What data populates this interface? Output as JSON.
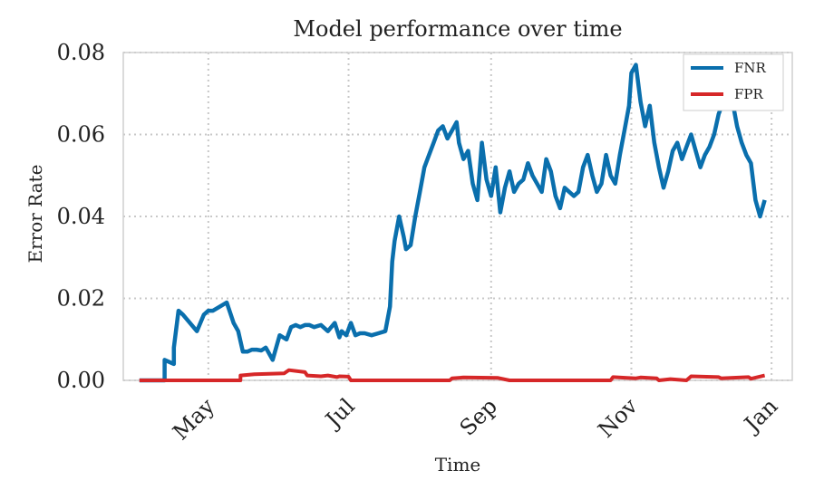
{
  "chart_data": {
    "type": "line",
    "title": "Model performance over time",
    "xlabel": "Time",
    "ylabel": "Error Rate",
    "xlim": [
      "2023-03-25",
      "2024-01-10"
    ],
    "ylim": [
      0,
      0.08
    ],
    "yticks": [
      0.0,
      0.02,
      0.04,
      0.06,
      0.08
    ],
    "ytick_labels": [
      "0.00",
      "0.02",
      "0.04",
      "0.06",
      "0.08"
    ],
    "xticks": [
      "2023-05-01",
      "2023-07-01",
      "2023-09-01",
      "2023-11-01",
      "2024-01-01"
    ],
    "xtick_labels": [
      "May",
      "Jul",
      "Sep",
      "Nov",
      "Jan"
    ],
    "grid": true,
    "legend_position": "top-right",
    "colors": {
      "FNR": "#0a6fad",
      "FPR": "#d62728",
      "grid": "#c8c8c8",
      "frame": "#cfcfcf"
    },
    "series": [
      {
        "name": "FNR",
        "x": [
          "2023-04-01",
          "2023-04-12",
          "2023-04-12",
          "2023-04-16",
          "2023-04-16",
          "2023-04-18",
          "2023-04-20",
          "2023-04-23",
          "2023-04-26",
          "2023-04-29",
          "2023-05-01",
          "2023-05-03",
          "2023-05-06",
          "2023-05-09",
          "2023-05-12",
          "2023-05-14",
          "2023-05-16",
          "2023-05-18",
          "2023-05-20",
          "2023-05-22",
          "2023-05-24",
          "2023-05-26",
          "2023-05-29",
          "2023-06-01",
          "2023-06-04",
          "2023-06-06",
          "2023-06-08",
          "2023-06-10",
          "2023-06-12",
          "2023-06-14",
          "2023-06-16",
          "2023-06-19",
          "2023-06-22",
          "2023-06-25",
          "2023-06-27",
          "2023-06-28",
          "2023-06-30",
          "2023-07-02",
          "2023-07-04",
          "2023-07-06",
          "2023-07-08",
          "2023-07-11",
          "2023-07-14",
          "2023-07-17",
          "2023-07-19",
          "2023-07-20",
          "2023-07-21",
          "2023-07-23",
          "2023-07-25",
          "2023-07-26",
          "2023-07-28",
          "2023-07-30",
          "2023-08-01",
          "2023-08-03",
          "2023-08-05",
          "2023-08-07",
          "2023-08-09",
          "2023-08-11",
          "2023-08-13",
          "2023-08-15",
          "2023-08-17",
          "2023-08-18",
          "2023-08-20",
          "2023-08-22",
          "2023-08-24",
          "2023-08-26",
          "2023-08-28",
          "2023-08-30",
          "2023-09-01",
          "2023-09-03",
          "2023-09-05",
          "2023-09-07",
          "2023-09-09",
          "2023-09-11",
          "2023-09-13",
          "2023-09-15",
          "2023-09-17",
          "2023-09-19",
          "2023-09-21",
          "2023-09-23",
          "2023-09-25",
          "2023-09-27",
          "2023-09-29",
          "2023-10-01",
          "2023-10-03",
          "2023-10-05",
          "2023-10-07",
          "2023-10-09",
          "2023-10-11",
          "2023-10-13",
          "2023-10-15",
          "2023-10-17",
          "2023-10-19",
          "2023-10-21",
          "2023-10-23",
          "2023-10-25",
          "2023-10-27",
          "2023-10-29",
          "2023-10-31",
          "2023-11-01",
          "2023-11-03",
          "2023-11-05",
          "2023-11-07",
          "2023-11-09",
          "2023-11-11",
          "2023-11-13",
          "2023-11-15",
          "2023-11-17",
          "2023-11-19",
          "2023-11-21",
          "2023-11-23",
          "2023-11-25",
          "2023-11-27",
          "2023-11-29",
          "2023-12-01",
          "2023-12-03",
          "2023-12-05",
          "2023-12-07",
          "2023-12-09",
          "2023-12-11",
          "2023-12-13",
          "2023-12-15",
          "2023-12-17",
          "2023-12-19",
          "2023-12-21",
          "2023-12-23",
          "2023-12-25",
          "2023-12-27",
          "2023-12-29"
        ],
        "y": [
          0.0,
          0.0,
          0.005,
          0.004,
          0.008,
          0.017,
          0.016,
          0.014,
          0.012,
          0.016,
          0.017,
          0.017,
          0.018,
          0.019,
          0.014,
          0.012,
          0.007,
          0.007,
          0.0075,
          0.0075,
          0.0073,
          0.008,
          0.005,
          0.011,
          0.01,
          0.013,
          0.0135,
          0.013,
          0.0135,
          0.0135,
          0.013,
          0.0135,
          0.012,
          0.014,
          0.0105,
          0.012,
          0.011,
          0.014,
          0.011,
          0.0115,
          0.0115,
          0.011,
          0.0115,
          0.012,
          0.018,
          0.029,
          0.034,
          0.04,
          0.035,
          0.032,
          0.033,
          0.04,
          0.046,
          0.052,
          0.055,
          0.058,
          0.061,
          0.062,
          0.059,
          0.061,
          0.063,
          0.058,
          0.054,
          0.056,
          0.048,
          0.044,
          0.058,
          0.049,
          0.045,
          0.052,
          0.041,
          0.047,
          0.051,
          0.046,
          0.048,
          0.049,
          0.053,
          0.05,
          0.048,
          0.046,
          0.054,
          0.051,
          0.045,
          0.042,
          0.047,
          0.046,
          0.045,
          0.046,
          0.052,
          0.055,
          0.05,
          0.046,
          0.048,
          0.055,
          0.05,
          0.048,
          0.055,
          0.061,
          0.067,
          0.075,
          0.077,
          0.068,
          0.062,
          0.067,
          0.058,
          0.052,
          0.047,
          0.051,
          0.056,
          0.058,
          0.054,
          0.057,
          0.06,
          0.056,
          0.052,
          0.055,
          0.057,
          0.06,
          0.065,
          0.068,
          0.069,
          0.068,
          0.062,
          0.058,
          0.055,
          0.053,
          0.044,
          0.04,
          0.044
        ]
      },
      {
        "name": "FPR",
        "x": [
          "2023-04-01",
          "2023-05-01",
          "2023-05-15",
          "2023-05-15",
          "2023-05-21",
          "2023-06-03",
          "2023-06-05",
          "2023-06-12",
          "2023-06-13",
          "2023-06-19",
          "2023-06-22",
          "2023-06-26",
          "2023-06-27",
          "2023-07-01",
          "2023-07-02",
          "2023-08-14",
          "2023-08-15",
          "2023-08-20",
          "2023-09-04",
          "2023-09-09",
          "2023-10-23",
          "2023-10-24",
          "2023-10-30",
          "2023-11-03",
          "2023-11-05",
          "2023-11-12",
          "2023-11-13",
          "2023-11-18",
          "2023-11-25",
          "2023-11-27",
          "2023-12-09",
          "2023-12-10",
          "2023-12-22",
          "2023-12-23",
          "2023-12-29"
        ],
        "y": [
          0.0,
          0.0,
          0.0,
          0.0012,
          0.0015,
          0.0017,
          0.0025,
          0.002,
          0.0012,
          0.001,
          0.0012,
          0.0008,
          0.001,
          0.0009,
          0.0,
          0.0,
          0.0005,
          0.0007,
          0.0006,
          0.0,
          0.0,
          0.0008,
          0.0006,
          0.0005,
          0.0007,
          0.0005,
          0.0,
          0.0003,
          0.0,
          0.001,
          0.0008,
          0.0005,
          0.0008,
          0.0004,
          0.0012
        ]
      }
    ]
  }
}
